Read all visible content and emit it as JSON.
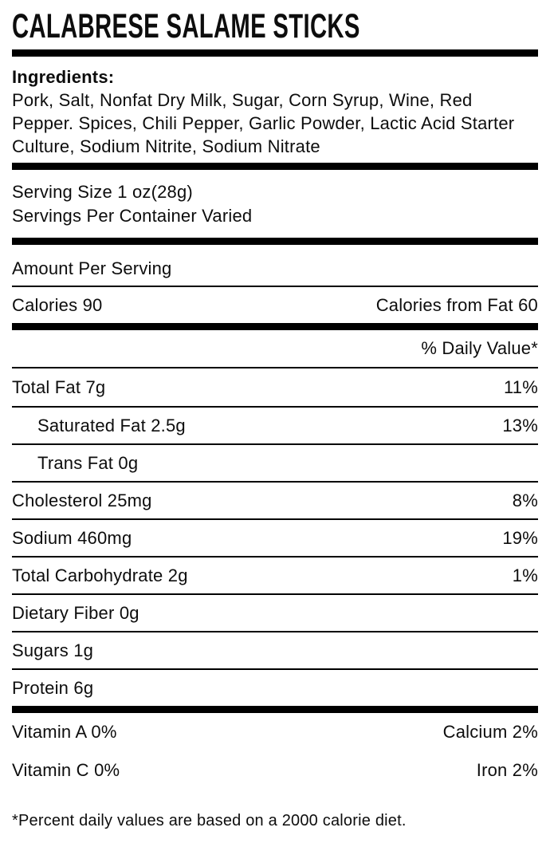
{
  "label": {
    "title": "CALABRESE SALAME STICKS",
    "ingredients": {
      "heading": "Ingredients:",
      "text": "Pork, Salt, Nonfat Dry Milk, Sugar, Corn Syrup, Wine, Red Pepper. Spices, Chili Pepper, Garlic Powder, Lactic Acid Starter Culture, Sodium Nitrite, Sodium Nitrate"
    },
    "serving": {
      "size": "Serving Size 1 oz(28g)",
      "per_container": "Servings Per Container Varied"
    },
    "amount_per_serving": "Amount Per Serving",
    "calories": {
      "left": "Calories 90",
      "right": "Calories from Fat 60"
    },
    "daily_value_header": "% Daily Value*",
    "nutrients": [
      {
        "label": "Total Fat 7g",
        "dv": "11%"
      },
      {
        "label": "Saturated Fat 2.5g",
        "dv": "13%"
      },
      {
        "label": "Trans Fat 0g",
        "dv": ""
      },
      {
        "label": "Cholesterol 25mg",
        "dv": "8%"
      },
      {
        "label": "Sodium 460mg",
        "dv": "19%"
      },
      {
        "label": "Total Carbohydrate 2g",
        "dv": "1%"
      },
      {
        "label": "Dietary Fiber 0g",
        "dv": ""
      },
      {
        "label": "Sugars 1g",
        "dv": ""
      },
      {
        "label": "Protein 6g",
        "dv": ""
      }
    ],
    "vitamins": [
      {
        "left": "Vitamin A 0%",
        "right": "Calcium 2%"
      },
      {
        "left": "Vitamin C 0%",
        "right": "Iron 2%"
      }
    ],
    "footnote": "*Percent daily values are based on a 2000 calorie diet.",
    "colors": {
      "background": "#ffffff",
      "text": "#0d0d0d",
      "rule": "#000000"
    }
  }
}
